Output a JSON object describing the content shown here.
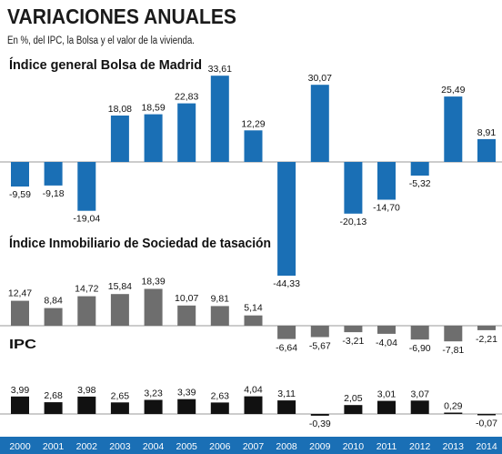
{
  "title": "VARIACIONES ANUALES",
  "subtitle": "En %, del IPC, la Bolsa y el valor de la vivienda.",
  "colors": {
    "bolsa": "#1a6fb5",
    "inmobiliario": "#6e6e6e",
    "ipc": "#111111",
    "axis_bar": "#1a6fb5",
    "axis_text": "#ffffff",
    "baseline": "#9a9a9a"
  },
  "chart_data": [
    {
      "type": "bar",
      "title": "Índice general Bolsa de Madrid",
      "categories": [
        "2000",
        "2001",
        "2002",
        "2003",
        "2004",
        "2005",
        "2006",
        "2007",
        "2008",
        "2009",
        "2010",
        "2011",
        "2012",
        "2013",
        "2014"
      ],
      "values": [
        -9.59,
        -9.18,
        -19.04,
        18.08,
        18.59,
        22.83,
        33.61,
        12.29,
        -44.33,
        30.07,
        -20.13,
        -14.7,
        -5.32,
        25.49,
        8.91
      ],
      "labels": [
        "-9,59",
        "-9,18",
        "-19,04",
        "18,08",
        "18,59",
        "22,83",
        "33,61",
        "12,29",
        "-44,33",
        "30,07",
        "-20,13",
        "-14,70",
        "-5,32",
        "25,49",
        "8,91"
      ]
    },
    {
      "type": "bar",
      "title": "Índice Inmobiliario de Sociedad de tasación",
      "categories": [
        "2000",
        "2001",
        "2002",
        "2003",
        "2004",
        "2005",
        "2006",
        "2007",
        "2008",
        "2009",
        "2010",
        "2011",
        "2012",
        "2013",
        "2014"
      ],
      "values": [
        12.47,
        8.84,
        14.72,
        15.84,
        18.39,
        10.07,
        9.81,
        5.14,
        -6.64,
        -5.67,
        -3.21,
        -4.04,
        -6.9,
        -7.81,
        -2.21
      ],
      "labels": [
        "12,47",
        "8,84",
        "14,72",
        "15,84",
        "18,39",
        "10,07",
        "9,81",
        "5,14",
        "-6,64",
        "-5,67",
        "-3,21",
        "-4,04",
        "-6,90",
        "-7,81",
        "-2,21"
      ]
    },
    {
      "type": "bar",
      "title": "IPC",
      "categories": [
        "2000",
        "2001",
        "2002",
        "2003",
        "2004",
        "2005",
        "2006",
        "2007",
        "2008",
        "2009",
        "2010",
        "2011",
        "2012",
        "2013",
        "2014"
      ],
      "values": [
        3.99,
        2.68,
        3.98,
        2.65,
        3.23,
        3.39,
        2.63,
        4.04,
        3.11,
        -0.39,
        2.05,
        3.01,
        3.07,
        0.29,
        -0.07
      ],
      "labels": [
        "3,99",
        "2,68",
        "3,98",
        "2,65",
        "3,23",
        "3,39",
        "2,63",
        "4,04",
        "3,11",
        "-0,39",
        "2,05",
        "3,01",
        "3,07",
        "0,29",
        "-0,07"
      ]
    }
  ],
  "years": [
    "2000",
    "2001",
    "2002",
    "2003",
    "2004",
    "2005",
    "2006",
    "2007",
    "2008",
    "2009",
    "2010",
    "2011",
    "2012",
    "2013",
    "2014"
  ]
}
